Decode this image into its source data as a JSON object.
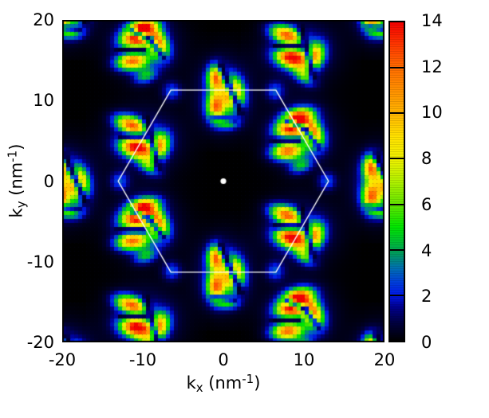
{
  "figure": {
    "background": "#ffffff",
    "border_color": "#000000",
    "text_color": "#000000"
  },
  "axes": {
    "x": {
      "label_base": "k",
      "label_sub": "x",
      "label_unit_pre": " (nm",
      "label_sup": "-1",
      "label_unit_post": ")",
      "range": [
        -20,
        20
      ],
      "ticks": [
        -20,
        -10,
        0,
        10,
        20
      ],
      "tick_labels": [
        "-20",
        "-10",
        "0",
        "10",
        "20"
      ]
    },
    "y": {
      "label_base": "k",
      "label_sub": "y",
      "label_unit_pre": " (nm",
      "label_sup": "-1",
      "label_unit_post": ")",
      "range": [
        -20,
        20
      ],
      "ticks": [
        -20,
        -10,
        0,
        10,
        20
      ],
      "tick_labels": [
        "-20",
        "-10",
        "0",
        "10",
        "20"
      ]
    }
  },
  "colorbar": {
    "range": [
      0,
      14
    ],
    "ticks": [
      0,
      2,
      4,
      6,
      8,
      10,
      12,
      14
    ],
    "tick_labels": [
      "0",
      "2",
      "4",
      "6",
      "8",
      "10",
      "12",
      "14"
    ],
    "tick_line_values": [
      2,
      4,
      6,
      8,
      10,
      12
    ]
  },
  "chart_data": {
    "type": "heatmap",
    "title": "",
    "xlabel": "k_x (nm^-1)",
    "ylabel": "k_y (nm^-1)",
    "x_range": [
      -20,
      20
    ],
    "y_range": [
      -20,
      20
    ],
    "value_range": [
      0,
      14
    ],
    "grid_cells": 81,
    "background_value": 0,
    "colormap": [
      [
        0,
        "#000000"
      ],
      [
        0.8,
        "#000040"
      ],
      [
        1.5,
        "#000090"
      ],
      [
        2,
        "#0018e8"
      ],
      [
        2.6,
        "#0040d8"
      ],
      [
        3.2,
        "#0070b0"
      ],
      [
        3.8,
        "#009860"
      ],
      [
        4.4,
        "#00c030"
      ],
      [
        5,
        "#00e400"
      ],
      [
        6,
        "#64e600"
      ],
      [
        7,
        "#b0f000"
      ],
      [
        8,
        "#f0f000"
      ],
      [
        9,
        "#ffe000"
      ],
      [
        10,
        "#ffb400"
      ],
      [
        11,
        "#ff9000"
      ],
      [
        12,
        "#ff6c00"
      ],
      [
        13,
        "#ff3800"
      ],
      [
        14,
        "#f20000"
      ]
    ],
    "brillouin_zone": {
      "color": "#ffffff",
      "line_width": 1.4,
      "vertices": [
        [
          13.05,
          0
        ],
        [
          6.52,
          11.3
        ],
        [
          -6.52,
          11.3
        ],
        [
          -13.05,
          0
        ],
        [
          -6.52,
          -11.3
        ],
        [
          6.52,
          -11.3
        ]
      ]
    },
    "gamma_point": {
      "x": 0,
      "y": 0,
      "radius_px": 3.6,
      "color": "#ffffff"
    },
    "k_point_blobs": {
      "amp": 2.6,
      "sigma": 0.8,
      "positions": [
        [
          13.05,
          0
        ],
        [
          6.52,
          11.3
        ],
        [
          -6.52,
          11.3
        ],
        [
          -13.05,
          0
        ],
        [
          -6.52,
          -11.3
        ],
        [
          6.52,
          -11.3
        ]
      ]
    },
    "cluster_templates": {
      "T1": {
        "lobes": [
          [
            -0.95,
            1.7,
            0.72,
            1.05,
            0,
            10.8
          ],
          [
            -0.95,
            -1.95,
            0.78,
            1.25,
            0,
            10.8
          ],
          [
            1.25,
            -0.3,
            0.85,
            1.3,
            8,
            13.4
          ],
          [
            0.6,
            -3.9,
            0.95,
            0.6,
            0,
            4.5
          ],
          [
            0,
            -0.3,
            2.3,
            2.9,
            0,
            2.1
          ]
        ],
        "darks": [
          [
            -0.3,
            3.2,
            2.2,
            -2.6,
            0.42,
            0.9
          ],
          [
            -1.3,
            -3.2,
            1.5,
            -3.6,
            0.3,
            0.7
          ]
        ]
      },
      "T2": {
        "lobes": [
          [
            -1.8,
            1.4,
            1.35,
            0.7,
            -20,
            11.2
          ],
          [
            -1.15,
            -1.45,
            1.35,
            0.8,
            -12,
            13.4
          ],
          [
            1.6,
            -1.3,
            0.8,
            1.15,
            -25,
            9.8
          ],
          [
            0.4,
            -3.7,
            1.05,
            0.6,
            -35,
            5.0
          ],
          [
            -0.2,
            -0.6,
            2.8,
            2.5,
            0,
            2.1
          ]
        ],
        "darks": [
          [
            -3.2,
            0,
            -0.1,
            0,
            0.3,
            0.85
          ],
          [
            0.1,
            2.2,
            1.6,
            -4.0,
            0.38,
            0.85
          ]
        ]
      },
      "T3": {
        "lobes": [
          [
            -0.3,
            2.55,
            1.25,
            0.65,
            12,
            10.2
          ],
          [
            -1.0,
            1.1,
            1.4,
            0.8,
            14,
            13.4
          ],
          [
            1.5,
            0.2,
            0.8,
            1.2,
            25,
            10.5
          ],
          [
            -1.7,
            -1.9,
            1.3,
            0.7,
            6,
            10.8
          ],
          [
            0,
            -3.7,
            1.0,
            0.6,
            20,
            4.0
          ],
          [
            -0.1,
            0.2,
            2.6,
            2.6,
            0,
            2.1
          ]
        ],
        "darks": [
          [
            -3.5,
            -0.5,
            -0.3,
            -0.5,
            0.3,
            0.85
          ],
          [
            -1.8,
            1.9,
            0.5,
            0.9,
            0.32,
            0.8
          ],
          [
            0.5,
            0.9,
            2.2,
            -1.4,
            0.32,
            0.8
          ]
        ]
      }
    },
    "cluster_instances": [
      [
        "T1",
        0,
        11.3
      ],
      [
        "T1",
        0,
        -11.3
      ],
      [
        "T1",
        -19.57,
        0
      ],
      [
        "T1",
        19.57,
        0
      ],
      [
        "T1",
        19.57,
        22.6
      ],
      [
        "T1",
        -19.57,
        22.6
      ],
      [
        "T1",
        19.57,
        -22.6
      ],
      [
        "T1",
        -19.57,
        -22.6
      ],
      [
        "T2",
        -9.78,
        5.65
      ],
      [
        "T2",
        9.78,
        -5.65
      ],
      [
        "T2",
        9.78,
        16.95
      ],
      [
        "T2",
        -9.78,
        -16.95
      ],
      [
        "T3",
        9.78,
        5.65
      ],
      [
        "T3",
        -9.78,
        -5.65
      ],
      [
        "T3",
        -9.78,
        16.95
      ],
      [
        "T3",
        9.78,
        -16.95
      ]
    ]
  }
}
